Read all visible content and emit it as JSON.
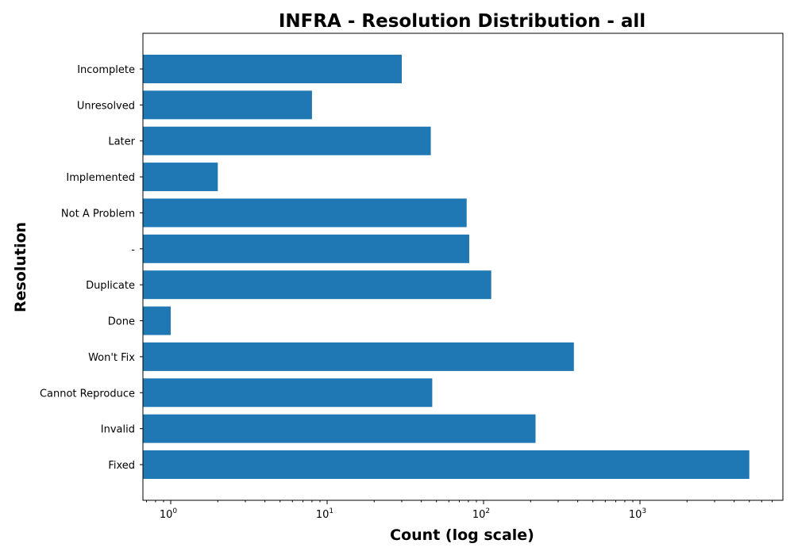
{
  "chart_data": {
    "type": "bar",
    "orientation": "horizontal",
    "title": "INFRA - Resolution Distribution - all",
    "xlabel": "Count (log scale)",
    "ylabel": "Resolution",
    "x_scale": "log",
    "xlim": [
      0.68,
      7500
    ],
    "x_tick_labels": [
      {
        "value": 1,
        "base": "10",
        "exp": "0"
      },
      {
        "value": 10,
        "base": "10",
        "exp": "1"
      },
      {
        "value": 100,
        "base": "10",
        "exp": "2"
      },
      {
        "value": 1000,
        "base": "10",
        "exp": "3"
      }
    ],
    "categories": [
      "Fixed",
      "Invalid",
      "Cannot Reproduce",
      "Won't Fix",
      "Done",
      "Duplicate",
      "-",
      "Not A Problem",
      "Implemented",
      "Later",
      "Unresolved",
      "Incomplete"
    ],
    "values": [
      5000,
      215,
      47,
      378,
      1,
      112,
      81,
      78,
      2,
      46,
      8,
      30
    ],
    "bar_color": "#1f77b4",
    "grid": false
  }
}
